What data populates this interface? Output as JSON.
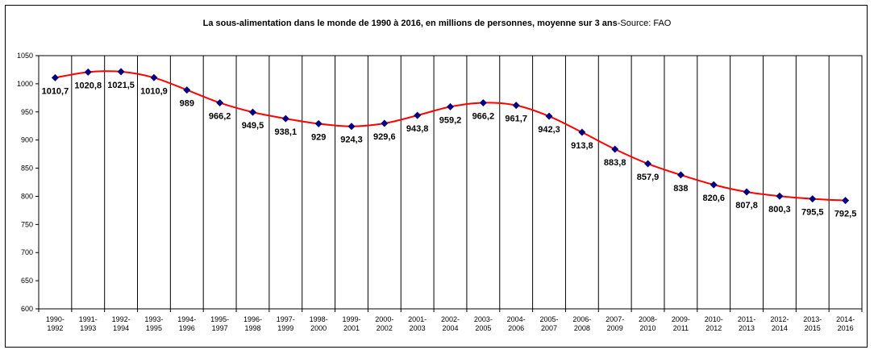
{
  "chart_data": {
    "type": "line",
    "title_main": "La sous-alimentation dans le monde de 1990 à 2016, en millions de personnes, moyenne sur 3 ans",
    "title_source": "-Source: FAO",
    "categories": [
      [
        "1990-",
        "1992"
      ],
      [
        "1991-",
        "1993"
      ],
      [
        "1992-",
        "1994"
      ],
      [
        "1993-",
        "1995"
      ],
      [
        "1994-",
        "1996"
      ],
      [
        "1995-",
        "1997"
      ],
      [
        "1996-",
        "1998"
      ],
      [
        "1997-",
        "1999"
      ],
      [
        "1998-",
        "2000"
      ],
      [
        "1999-",
        "2001"
      ],
      [
        "2000-",
        "2002"
      ],
      [
        "2001-",
        "2003"
      ],
      [
        "2002-",
        "2004"
      ],
      [
        "2003-",
        "2005"
      ],
      [
        "2004-",
        "2006"
      ],
      [
        "2005-",
        "2007"
      ],
      [
        "2006-",
        "2008"
      ],
      [
        "2007-",
        "2009"
      ],
      [
        "2008-",
        "2010"
      ],
      [
        "2009-",
        "2011"
      ],
      [
        "2010-",
        "2012"
      ],
      [
        "2011-",
        "2013"
      ],
      [
        "2012-",
        "2014"
      ],
      [
        "2013-",
        "2015"
      ],
      [
        "2014-",
        "2016"
      ]
    ],
    "values": [
      1010.7,
      1020.8,
      1021.5,
      1010.9,
      989,
      966.2,
      949.5,
      938.1,
      929,
      924.3,
      929.6,
      943.8,
      959.2,
      966.2,
      961.7,
      942.3,
      913.8,
      883.8,
      857.9,
      838,
      820.6,
      807.8,
      800.3,
      795.5,
      792.5
    ],
    "labels": [
      "1010,7",
      "1020,8",
      "1021,5",
      "1010,9",
      "989",
      "966,2",
      "949,5",
      "938,1",
      "929",
      "924,3",
      "929,6",
      "943,8",
      "959,2",
      "966,2",
      "961,7",
      "942,3",
      "913,8",
      "883,8",
      "857,9",
      "838",
      "820,6",
      "807,8",
      "800,3",
      "795,5",
      "792,5"
    ],
    "yticks": [
      600,
      650,
      700,
      750,
      800,
      850,
      900,
      950,
      1000,
      1050
    ],
    "ylim": [
      600,
      1050
    ],
    "grid": "vertical",
    "legend": "none",
    "line_color": "#ff0000",
    "marker_color": "#000080"
  }
}
